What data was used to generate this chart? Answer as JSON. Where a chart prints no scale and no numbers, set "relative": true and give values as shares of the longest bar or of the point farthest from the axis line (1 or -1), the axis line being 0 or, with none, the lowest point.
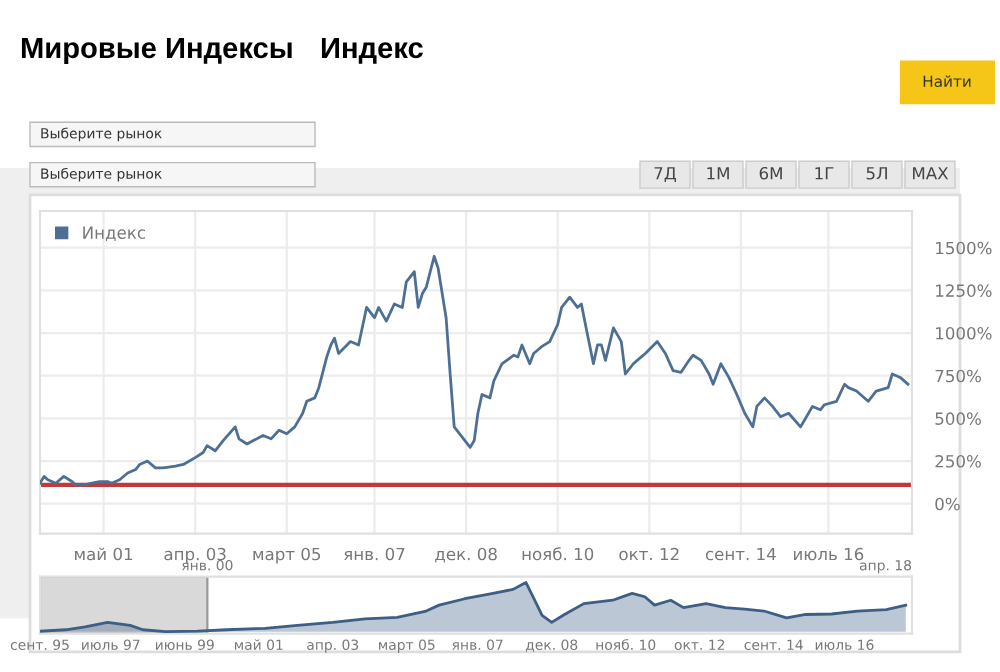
{
  "chart_data": [
    {
      "type": "line",
      "title": "Мировые Индексы",
      "subtitle": "Индекс",
      "annotations": [
        "Выберите рынок",
        "Выберите рынок",
        "7Д",
        "1М",
        "6М",
        "1Г",
        "5Л",
        "MAX",
        "Найти"
      ],
      "xlim": [
        "2000-01",
        "2018-04"
      ],
      "ylim": [
        -175,
        1715
      ],
      "xticks": [
        {
          "value": "2001-05",
          "label": "май 01"
        },
        {
          "value": "2003-04",
          "label": "апр. 03"
        },
        {
          "value": "2005-03",
          "label": "март 05"
        },
        {
          "value": "2007-01",
          "label": "янв. 07"
        },
        {
          "value": "2008-12",
          "label": "дек. 08"
        },
        {
          "value": "2010-11",
          "label": "нояб. 10"
        },
        {
          "value": "2012-10",
          "label": "окт. 12"
        },
        {
          "value": "2014-09",
          "label": "сент. 14"
        },
        {
          "value": "2016-07",
          "label": "июль 16"
        }
      ],
      "yticks": [
        {
          "value": 0,
          "label": "0%"
        },
        {
          "value": 250,
          "label": "250%"
        },
        {
          "value": 500,
          "label": "500%"
        },
        {
          "value": 750,
          "label": "750%"
        },
        {
          "value": 1000,
          "label": "1000%"
        },
        {
          "value": 1250,
          "label": "1250%"
        },
        {
          "value": 1500,
          "label": "1500%"
        }
      ],
      "grid": true,
      "legend": "top left",
      "ref_lines": [
        {
          "axis": "y",
          "value": 110,
          "color": "#c0393b"
        }
      ],
      "series": [
        {
          "name": "Индекс",
          "color": "#4d6f94",
          "x": [
            "2000-01",
            "2000-02",
            "2000-03",
            "2000-05",
            "2000-07",
            "2000-09",
            "2000-10",
            "2000-12",
            "2001-02",
            "2001-04",
            "2001-06",
            "2001-07",
            "2001-09",
            "2001-11",
            "2002-01",
            "2002-02",
            "2002-04",
            "2002-06",
            "2002-08",
            "2002-11",
            "2003-01",
            "2003-04",
            "2003-06",
            "2003-07",
            "2003-09",
            "2003-11",
            "2004-02",
            "2004-03",
            "2004-05",
            "2004-09",
            "2004-11",
            "2005-01",
            "2005-03",
            "2005-05",
            "2005-07",
            "2005-08",
            "2005-10",
            "2005-11",
            "2006-01",
            "2006-02",
            "2006-03",
            "2006-04",
            "2006-07",
            "2006-09",
            "2006-11",
            "2007-01",
            "2007-02",
            "2007-04",
            "2007-06",
            "2007-08",
            "2007-09",
            "2007-11",
            "2007-12",
            "2008-01",
            "2008-02",
            "2008-04",
            "2008-05",
            "2008-07",
            "2008-08",
            "2008-09",
            "2008-11",
            "2009-01",
            "2009-02",
            "2009-03",
            "2009-04",
            "2009-06",
            "2009-07",
            "2009-09",
            "2009-12",
            "2010-01",
            "2010-02",
            "2010-04",
            "2010-05",
            "2010-07",
            "2010-09",
            "2010-11",
            "2010-12",
            "2011-02",
            "2011-04",
            "2011-05",
            "2011-06",
            "2011-08",
            "2011-09",
            "2011-10",
            "2011-11",
            "2012-01",
            "2012-03",
            "2012-04",
            "2012-06",
            "2012-08",
            "2012-09",
            "2012-12",
            "2013-02",
            "2013-04",
            "2013-06",
            "2013-08",
            "2013-09",
            "2013-11",
            "2014-01",
            "2014-02",
            "2014-04",
            "2014-06",
            "2014-08",
            "2014-10",
            "2014-12",
            "2015-01",
            "2015-03",
            "2015-05",
            "2015-07",
            "2015-09",
            "2015-12",
            "2016-01",
            "2016-03",
            "2016-05",
            "2016-06",
            "2016-09",
            "2016-11",
            "2016-12",
            "2017-02",
            "2017-05",
            "2017-07",
            "2017-10",
            "2017-11",
            "2018-01",
            "2018-03"
          ],
          "values": [
            120,
            160,
            140,
            120,
            160,
            130,
            110,
            110,
            120,
            130,
            130,
            120,
            140,
            180,
            200,
            230,
            250,
            210,
            210,
            220,
            230,
            270,
            300,
            340,
            310,
            370,
            450,
            380,
            350,
            400,
            380,
            430,
            410,
            450,
            530,
            600,
            620,
            680,
            860,
            930,
            970,
            880,
            950,
            930,
            1150,
            1090,
            1150,
            1070,
            1170,
            1150,
            1300,
            1360,
            1150,
            1230,
            1270,
            1450,
            1380,
            1090,
            760,
            450,
            390,
            330,
            370,
            530,
            640,
            620,
            720,
            820,
            870,
            860,
            930,
            820,
            880,
            920,
            950,
            1050,
            1150,
            1210,
            1150,
            1170,
            1050,
            820,
            930,
            930,
            840,
            1030,
            950,
            760,
            820,
            860,
            880,
            950,
            880,
            780,
            770,
            840,
            870,
            840,
            760,
            700,
            820,
            740,
            640,
            530,
            450,
            570,
            620,
            570,
            510,
            530,
            450,
            490,
            570,
            550,
            580,
            600,
            700,
            680,
            660,
            600,
            660,
            680,
            760,
            740,
            700
          ]
        }
      ]
    },
    {
      "type": "area",
      "relative": true,
      "tick_labels": "x",
      "annotations": [
        "янв. 00",
        "апр. 18"
      ],
      "xlim": [
        "1995-09",
        "2018-04"
      ],
      "xticks": [
        {
          "value": "1995-09",
          "label": "сент. 95"
        },
        {
          "value": "1997-07",
          "label": "июль 97"
        },
        {
          "value": "1999-06",
          "label": "июнь 99"
        },
        {
          "value": "2001-05",
          "label": "май 01"
        },
        {
          "value": "2003-04",
          "label": "апр. 03"
        },
        {
          "value": "2005-03",
          "label": "март 05"
        },
        {
          "value": "2007-01",
          "label": "янв. 07"
        },
        {
          "value": "2008-12",
          "label": "дек. 08"
        },
        {
          "value": "2010-11",
          "label": "нояб. 10"
        },
        {
          "value": "2012-10",
          "label": "окт. 12"
        },
        {
          "value": "2014-09",
          "label": "сент. 14"
        },
        {
          "value": "2016-07",
          "label": "июль 16"
        }
      ],
      "bands": [
        {
          "axis": "x",
          "from": "1995-09",
          "to": "2000-01",
          "color": "#d9d9d9"
        }
      ],
      "series": [
        {
          "color": "#3d5f86",
          "x": [
            "1995-09",
            "1996-05",
            "1996-11",
            "1997-06",
            "1998-01",
            "1998-05",
            "1998-12",
            "1999-10",
            "2000-07",
            "2001-07",
            "2002-05",
            "2003-04",
            "2004-02",
            "2004-12",
            "2005-09",
            "2006-01",
            "2006-09",
            "2007-05",
            "2007-12",
            "2008-04",
            "2008-06",
            "2008-09",
            "2008-12",
            "2009-04",
            "2009-10",
            "2010-07",
            "2011-01",
            "2011-05",
            "2011-08",
            "2012-01",
            "2012-05",
            "2012-12",
            "2013-06",
            "2013-12",
            "2014-06",
            "2015-01",
            "2015-07",
            "2016-03",
            "2016-11",
            "2017-08",
            "2018-02"
          ],
          "values": [
            0.01,
            0.04,
            0.1,
            0.19,
            0.13,
            0.04,
            0,
            0.01,
            0.04,
            0.07,
            0.13,
            0.19,
            0.26,
            0.29,
            0.42,
            0.54,
            0.67,
            0.77,
            0.86,
            1,
            0.74,
            0.33,
            0.19,
            0.35,
            0.57,
            0.64,
            0.78,
            0.71,
            0.54,
            0.64,
            0.49,
            0.57,
            0.49,
            0.46,
            0.42,
            0.28,
            0.35,
            0.36,
            0.42,
            0.45,
            0.54
          ]
        }
      ]
    }
  ]
}
